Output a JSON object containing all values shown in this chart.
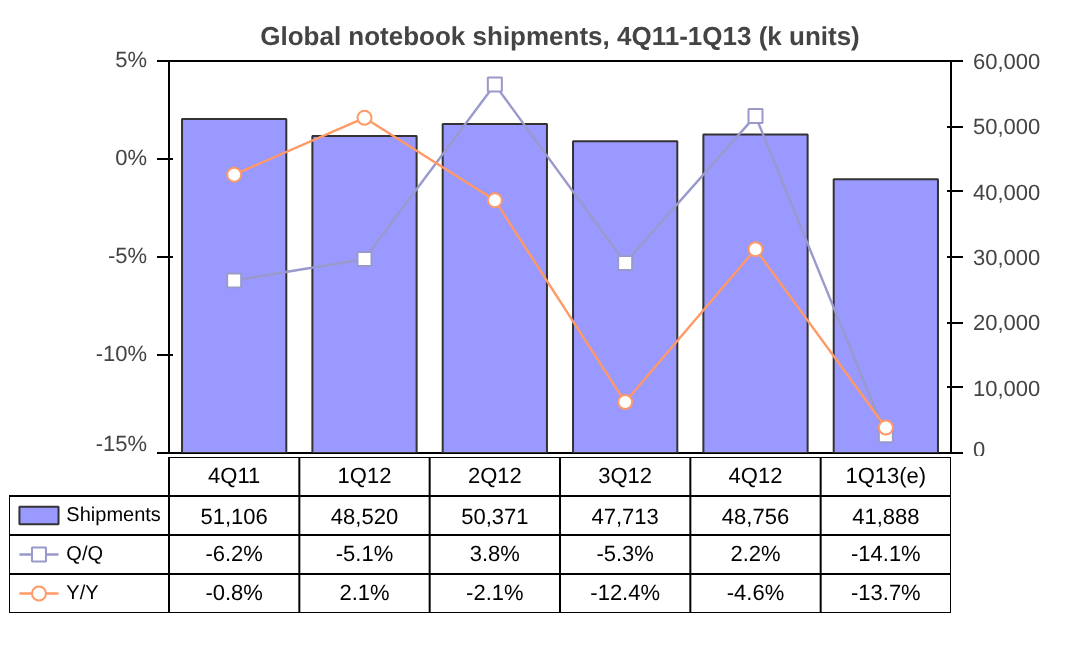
{
  "chart_data": {
    "type": "bar",
    "title": "Global notebook shipments, 4Q11-1Q13 (k units)",
    "categories": [
      "4Q11",
      "1Q12",
      "2Q12",
      "3Q12",
      "4Q12",
      "1Q13(e)"
    ],
    "series": [
      {
        "name": "Shipments",
        "axis": "y2",
        "color": "#9999ff",
        "values": [
          51106,
          48520,
          50371,
          47713,
          48756,
          41888
        ],
        "value_labels": [
          "51,106",
          "48,520",
          "50,371",
          "47,713",
          "48,756",
          "41,888"
        ]
      },
      {
        "name": "Q/Q",
        "type": "line",
        "color": "#9999cc",
        "marker": "square",
        "values": [
          -6.2,
          -5.1,
          3.8,
          -5.3,
          2.2,
          -14.1
        ],
        "value_labels": [
          "-6.2%",
          "-5.1%",
          "3.8%",
          "-5.3%",
          "2.2%",
          "-14.1%"
        ]
      },
      {
        "name": "Y/Y",
        "type": "line",
        "color": "#ff9966",
        "marker": "circle",
        "values": [
          -0.8,
          2.1,
          -2.1,
          -12.4,
          -4.6,
          -13.7
        ],
        "value_labels": [
          "-0.8%",
          "2.1%",
          "-2.1%",
          "-12.4%",
          "-4.6%",
          "-13.7%"
        ]
      }
    ],
    "ylim": [
      -15,
      5
    ],
    "yticks": [
      {
        "value": -15,
        "label": "-15%"
      },
      {
        "value": -10,
        "label": "-10%"
      },
      {
        "value": -5,
        "label": "-5%"
      },
      {
        "value": 0,
        "label": "0%"
      },
      {
        "value": 5,
        "label": "5%"
      }
    ],
    "y2lim": [
      0,
      60000
    ],
    "y2ticks": [
      0,
      {
        "value": 10000,
        "label": "10,000"
      },
      {
        "value": 20000,
        "label": "20,000"
      },
      {
        "value": 30000,
        "label": "30,000"
      },
      {
        "value": 40000,
        "label": "40,000"
      },
      {
        "value": 50000,
        "label": "50,000"
      },
      {
        "value": 60000,
        "label": "60,000"
      }
    ],
    "data_labels": true,
    "legend": "bottom"
  }
}
